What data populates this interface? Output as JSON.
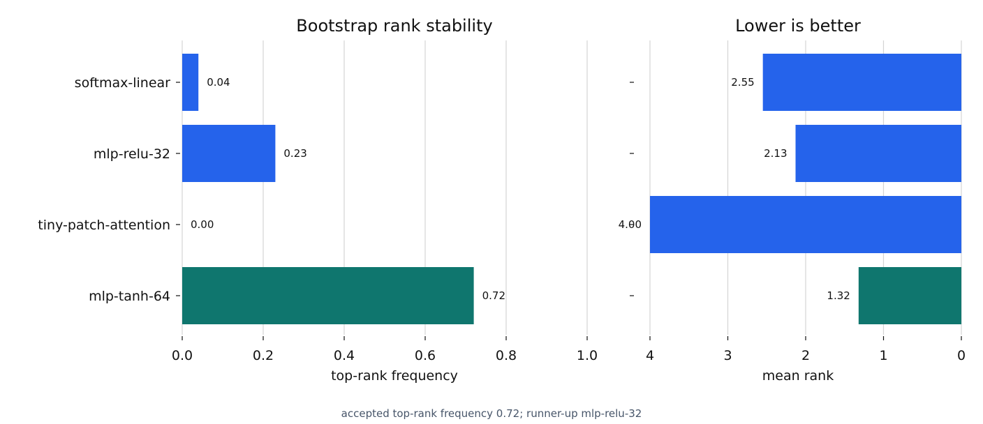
{
  "footer_note": "accepted top-rank frequency 0.72; runner-up mlp-relu-32",
  "colors": {
    "accepted": "#0f766e",
    "other": "#2563eb"
  },
  "chart_data": [
    {
      "type": "bar",
      "orientation": "horizontal",
      "title": "Bootstrap rank stability",
      "xlabel": "top-rank frequency",
      "ylabel": "",
      "categories": [
        "softmax-linear",
        "mlp-relu-32",
        "tiny-patch-attention",
        "mlp-tanh-64"
      ],
      "values": [
        0.04,
        0.23,
        0.0,
        0.72
      ],
      "value_labels": [
        "0.04",
        "0.23",
        "0.00",
        "0.72"
      ],
      "highlight": "mlp-tanh-64",
      "xlim": [
        0,
        1.0
      ],
      "xticks": [
        0.0,
        0.2,
        0.4,
        0.6,
        0.8,
        1.0
      ],
      "xtick_labels": [
        "0.0",
        "0.2",
        "0.4",
        "0.6",
        "0.8",
        "1.0"
      ],
      "grid": "vertical"
    },
    {
      "type": "bar",
      "orientation": "horizontal",
      "title": "Lower is better",
      "xlabel": "mean rank",
      "ylabel": "",
      "categories": [
        "softmax-linear",
        "mlp-relu-32",
        "tiny-patch-attention",
        "mlp-tanh-64"
      ],
      "values": [
        2.55,
        2.13,
        4.0,
        1.32
      ],
      "value_labels": [
        "2.55",
        "2.13",
        "4.00",
        "1.32"
      ],
      "highlight": "mlp-tanh-64",
      "xlim": [
        4,
        0
      ],
      "x_inverted": true,
      "xticks": [
        4,
        3,
        2,
        1,
        0
      ],
      "xtick_labels": [
        "4",
        "3",
        "2",
        "1",
        "0"
      ],
      "grid": "vertical"
    }
  ]
}
